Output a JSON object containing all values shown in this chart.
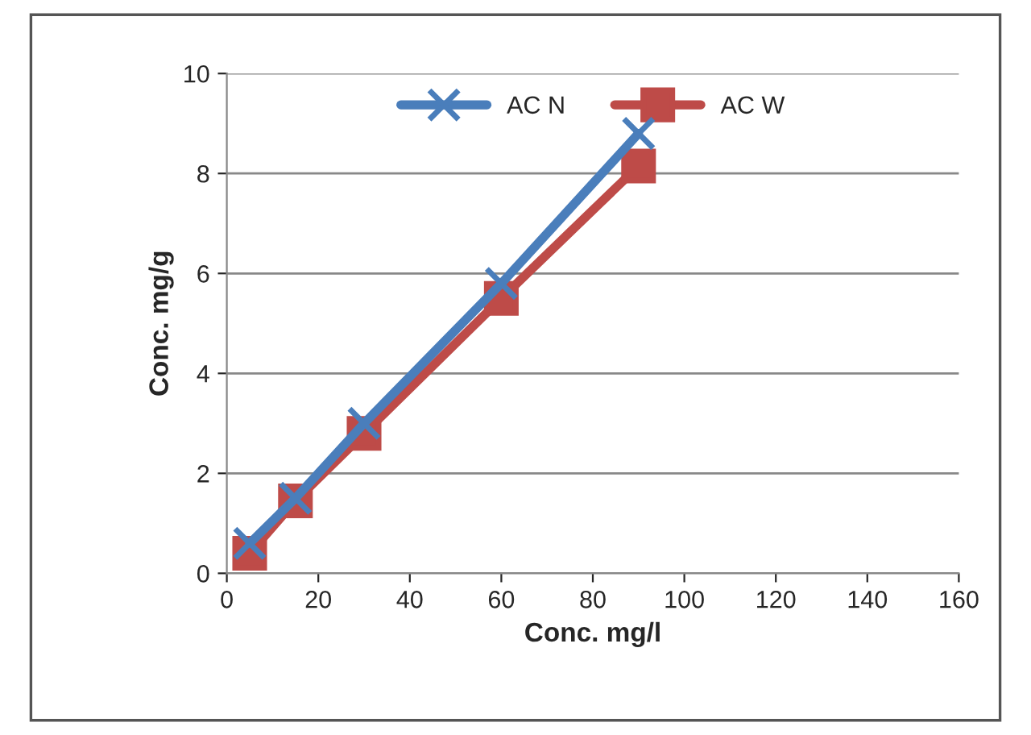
{
  "chart_data": {
    "type": "line",
    "xlabel": "Conc. mg/l",
    "ylabel": "Conc. mg/g",
    "x": [
      5,
      15,
      30,
      60,
      90
    ],
    "series": [
      {
        "name": "AC N",
        "color": "#4a7ebb",
        "marker": "cross",
        "values": [
          0.6,
          1.5,
          3.0,
          5.8,
          8.8
        ]
      },
      {
        "name": "AC W",
        "color": "#be4b48",
        "marker": "square",
        "values": [
          0.4,
          1.45,
          2.8,
          5.5,
          8.15
        ]
      }
    ],
    "xlim": [
      0,
      160
    ],
    "xticks": [
      0,
      20,
      40,
      60,
      80,
      100,
      120,
      140,
      160
    ],
    "ylim": [
      0,
      10
    ],
    "yticks": [
      0,
      2,
      4,
      6,
      8,
      10
    ],
    "grid": "y",
    "legend": "top",
    "line_style": "solid"
  }
}
